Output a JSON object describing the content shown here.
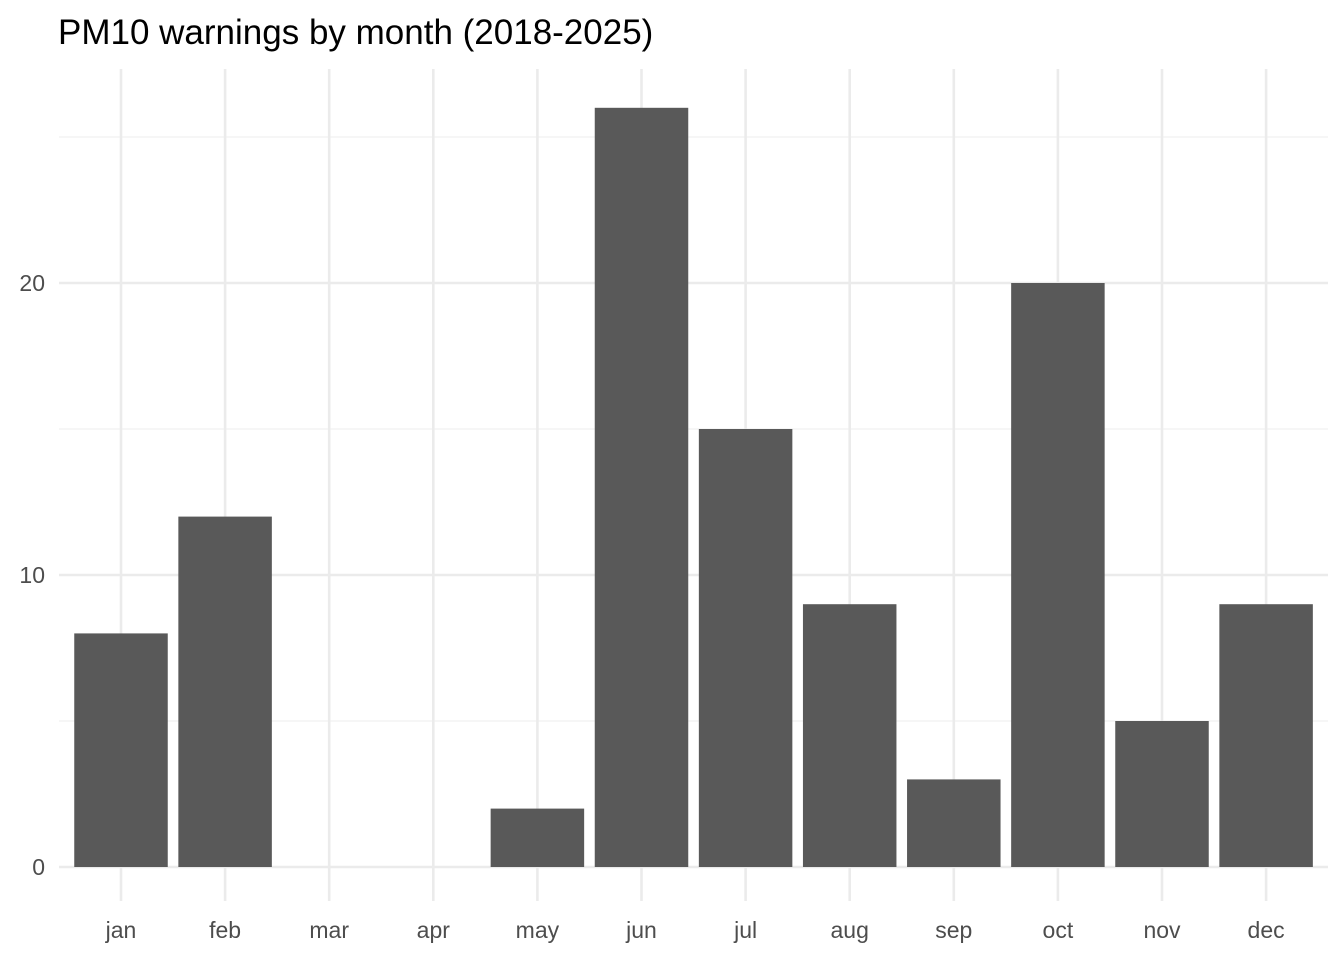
{
  "chart_data": {
    "type": "bar",
    "title": "PM10 warnings by month (2018-2025)",
    "xlabel": "",
    "ylabel": "",
    "categories": [
      "jan",
      "feb",
      "mar",
      "apr",
      "may",
      "jun",
      "jul",
      "aug",
      "sep",
      "oct",
      "nov",
      "dec"
    ],
    "values": [
      8,
      12,
      0,
      0,
      2,
      26,
      15,
      9,
      3,
      20,
      5,
      9
    ],
    "ylim": [
      0,
      27.3
    ],
    "y_major_ticks": [
      0,
      10,
      20
    ],
    "y_minor_ticks": [
      5,
      15,
      25
    ],
    "grid": true,
    "legend": "none",
    "colors": {
      "bar": "#595959",
      "grid_major": "#ebebeb",
      "grid_minor": "#f4f4f4",
      "tick_text": "#4d4d4d",
      "title": "#000000"
    }
  }
}
